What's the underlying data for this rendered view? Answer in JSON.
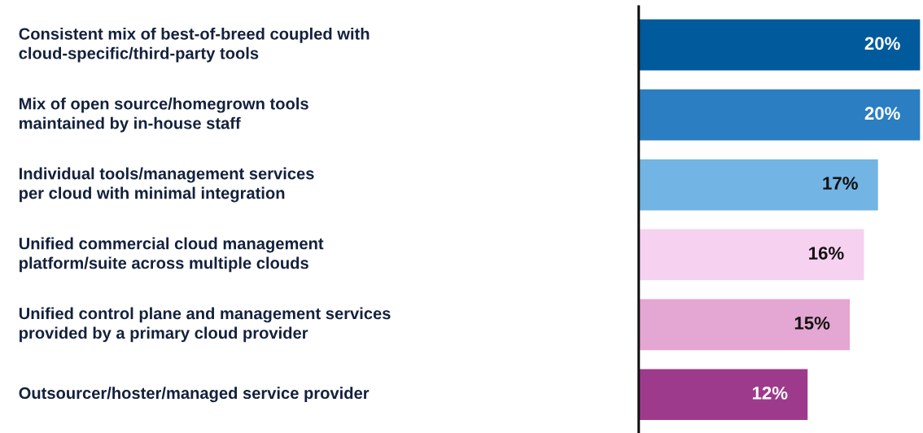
{
  "chart_data": {
    "type": "bar",
    "orientation": "horizontal",
    "categories": [
      "Consistent mix of best-of-breed coupled with\ncloud-specific/third-party tools",
      "Mix of open source/homegrown tools\nmaintained by in-house staff",
      "Individual tools/management services\nper cloud with minimal integration",
      "Unified commercial cloud management\nplatform/suite across multiple clouds",
      "Unified control plane and management services\nprovided by a primary cloud provider",
      "Outsourcer/hoster/managed service provider"
    ],
    "values": [
      20,
      20,
      17,
      16,
      15,
      12
    ],
    "colors": [
      "#005a9c",
      "#2a7ec1",
      "#72b4e3",
      "#f7d1f0",
      "#e4a6d2",
      "#9e3a8c"
    ],
    "value_labels": [
      "20%",
      "20%",
      "17%",
      "16%",
      "15%",
      "12%"
    ]
  }
}
